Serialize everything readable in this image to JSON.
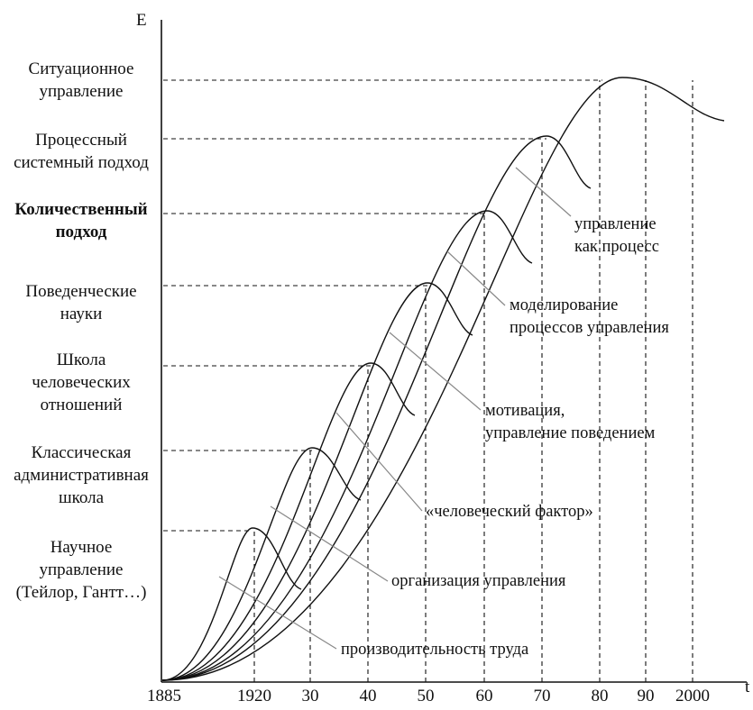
{
  "diagram": {
    "y_axis_label": "E",
    "x_axis_label": "t",
    "x_ticks": [
      "1885",
      "1920",
      "30",
      "40",
      "50",
      "60",
      "70",
      "80",
      "90",
      "2000"
    ],
    "stages": [
      {
        "lines": [
          "Научное",
          "управление",
          "(Тейлор, Гантт…)"
        ],
        "bold": false
      },
      {
        "lines": [
          "Классическая",
          "административная",
          "школа"
        ],
        "bold": false
      },
      {
        "lines": [
          "Школа",
          "человеческих",
          "отношений"
        ],
        "bold": false
      },
      {
        "lines": [
          "Поведенческие",
          "науки"
        ],
        "bold": false
      },
      {
        "lines": [
          "Количественный",
          "подход"
        ],
        "bold": true
      },
      {
        "lines": [
          "Процессный",
          "системный подход"
        ],
        "bold": false
      },
      {
        "lines": [
          "Ситуационное",
          "управление"
        ],
        "bold": false
      }
    ],
    "annotations": [
      {
        "lines": [
          "производительность труда"
        ]
      },
      {
        "lines": [
          "организация управления"
        ]
      },
      {
        "lines": [
          "«человеческий фактор»"
        ]
      },
      {
        "lines": [
          "мотивация,",
          "управление поведением"
        ]
      },
      {
        "lines": [
          "моделирование",
          "процессов управления"
        ]
      },
      {
        "lines": [
          "управление",
          "как процесс"
        ]
      }
    ]
  }
}
